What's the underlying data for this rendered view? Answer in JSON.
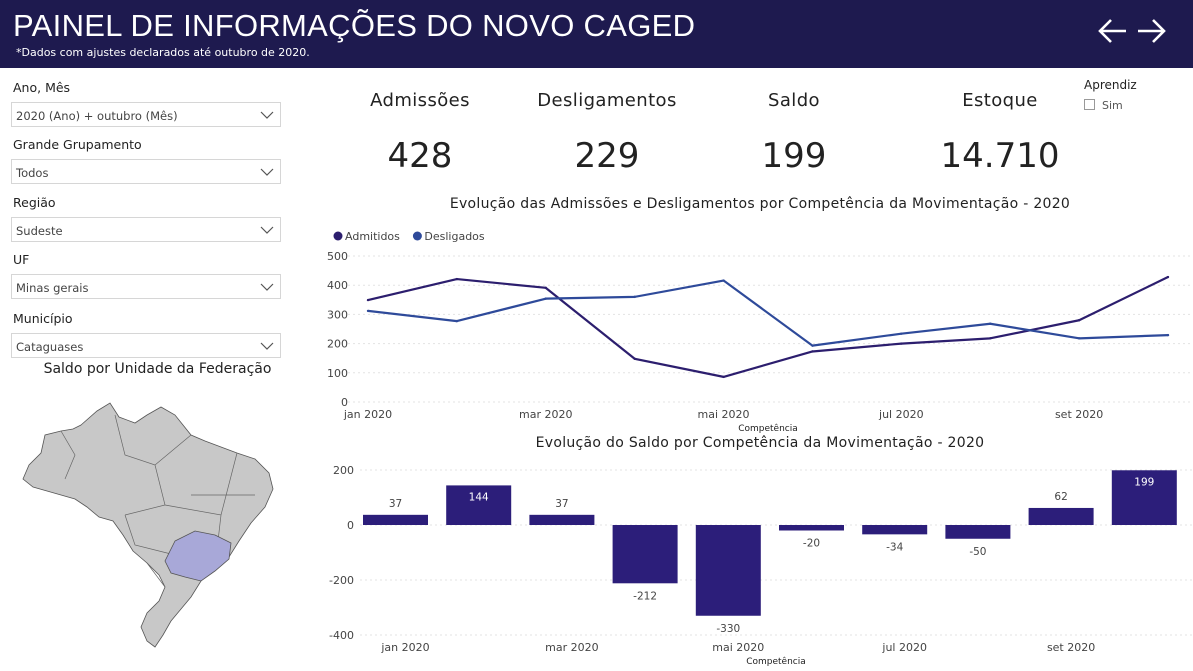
{
  "header": {
    "title": "PAINEL DE INFORMAÇÕES DO NOVO CAGED",
    "subtitle": "*Dados com ajustes declarados até outubro de 2020.",
    "back_icon": "arrow-left-icon",
    "forward_icon": "arrow-right-icon"
  },
  "filters": {
    "ano_mes": {
      "label": "Ano, Mês",
      "value": "2020 (Ano) + outubro (Mês)"
    },
    "grupamento": {
      "label": "Grande Grupamento",
      "value": "Todos"
    },
    "regiao": {
      "label": "Região",
      "value": "Sudeste"
    },
    "uf": {
      "label": "UF",
      "value": "Minas gerais"
    },
    "municipio": {
      "label": "Município",
      "value": "Cataguases"
    }
  },
  "map": {
    "title": "Saldo por Unidade da Federação",
    "highlight_color": "#a8a8d8",
    "base_color": "#c8c8c8"
  },
  "kpis": {
    "admissoes": {
      "label": "Admissões",
      "value": "428"
    },
    "desligamentos": {
      "label": "Desligamentos",
      "value": "229"
    },
    "saldo": {
      "label": "Saldo",
      "value": "199"
    },
    "estoque": {
      "label": "Estoque",
      "value": "14.710"
    }
  },
  "aprendiz": {
    "title": "Aprendiz",
    "option": "Sim"
  },
  "colors": {
    "header": "#1e1a4f",
    "admitidos": "#2c1e6e",
    "desligados": "#2e4a9a",
    "bar": "#2c1e7a"
  },
  "chart_data": [
    {
      "type": "line",
      "title": "Evolução das Admissões e Desligamentos por Competência da Movimentação - 2020",
      "xlabel": "Competência",
      "x_ticks": [
        "jan 2020",
        "mar 2020",
        "mai 2020",
        "jul 2020",
        "set 2020"
      ],
      "y_ticks": [
        "0",
        "100",
        "200",
        "300",
        "400",
        "500"
      ],
      "ylim": [
        0,
        500
      ],
      "legend": "top-left",
      "categories": [
        "jan",
        "fev",
        "mar",
        "abr",
        "mai",
        "jun",
        "jul",
        "ago",
        "set",
        "out"
      ],
      "series": [
        {
          "name": "Admitidos",
          "values": [
            349,
            421,
            391,
            148,
            86,
            173,
            200,
            218,
            280,
            428
          ]
        },
        {
          "name": "Desligados",
          "values": [
            312,
            277,
            354,
            360,
            416,
            193,
            234,
            268,
            218,
            229
          ]
        }
      ]
    },
    {
      "type": "bar",
      "title": "Evolução do Saldo por Competência da Movimentação - 2020",
      "xlabel": "Competência",
      "x_ticks": [
        "jan 2020",
        "mar 2020",
        "mai 2020",
        "jul 2020",
        "set 2020"
      ],
      "y_ticks": [
        "200",
        "0",
        "-200",
        "-400"
      ],
      "ylim": [
        -400,
        200
      ],
      "categories": [
        "jan",
        "fev",
        "mar",
        "abr",
        "mai",
        "jun",
        "jul",
        "ago",
        "set",
        "out"
      ],
      "values": [
        37,
        144,
        37,
        -212,
        -330,
        -20,
        -34,
        -50,
        62,
        199
      ],
      "labels": [
        "37",
        "144",
        "37",
        "-212",
        "-330",
        "-20",
        "-34",
        "-50",
        "62",
        "199"
      ]
    }
  ]
}
